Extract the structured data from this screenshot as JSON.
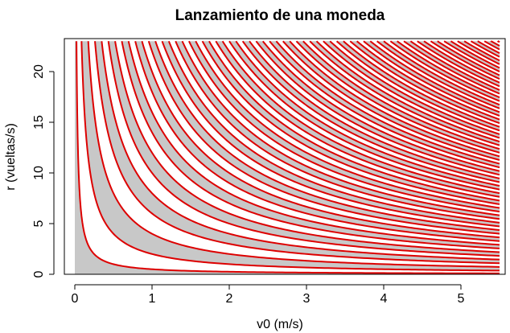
{
  "chart_data": {
    "type": "line",
    "title": "Lanzamiento de una moneda",
    "xlabel": "v0 (m/s)",
    "ylabel": "r (vueltas/s)",
    "xlim": [
      0,
      5.5
    ],
    "ylim": [
      0,
      23
    ],
    "xticks": [
      0,
      1,
      2,
      3,
      4,
      5
    ],
    "yticks": [
      0,
      5,
      10,
      15,
      20
    ],
    "series_rule": "r = k / v0",
    "k_values": [
      0.5,
      2,
      4,
      6,
      8,
      10,
      12,
      14,
      16,
      18,
      20,
      22,
      24,
      26,
      28,
      30,
      32,
      34,
      36,
      38,
      40,
      42,
      44,
      46,
      48,
      50,
      52,
      54,
      56,
      58,
      60,
      62,
      64,
      66,
      68,
      70,
      72,
      74,
      76,
      78,
      80,
      82,
      84,
      86,
      88,
      90,
      92,
      94,
      96,
      98,
      100,
      102,
      104,
      106,
      108,
      110,
      112,
      114,
      116,
      118,
      120,
      122,
      124,
      126
    ],
    "grid": false,
    "colors": {
      "curve": "#dd0000",
      "shade": "#c8c8c8",
      "background": "#ffffff",
      "axis": "#000000"
    }
  }
}
